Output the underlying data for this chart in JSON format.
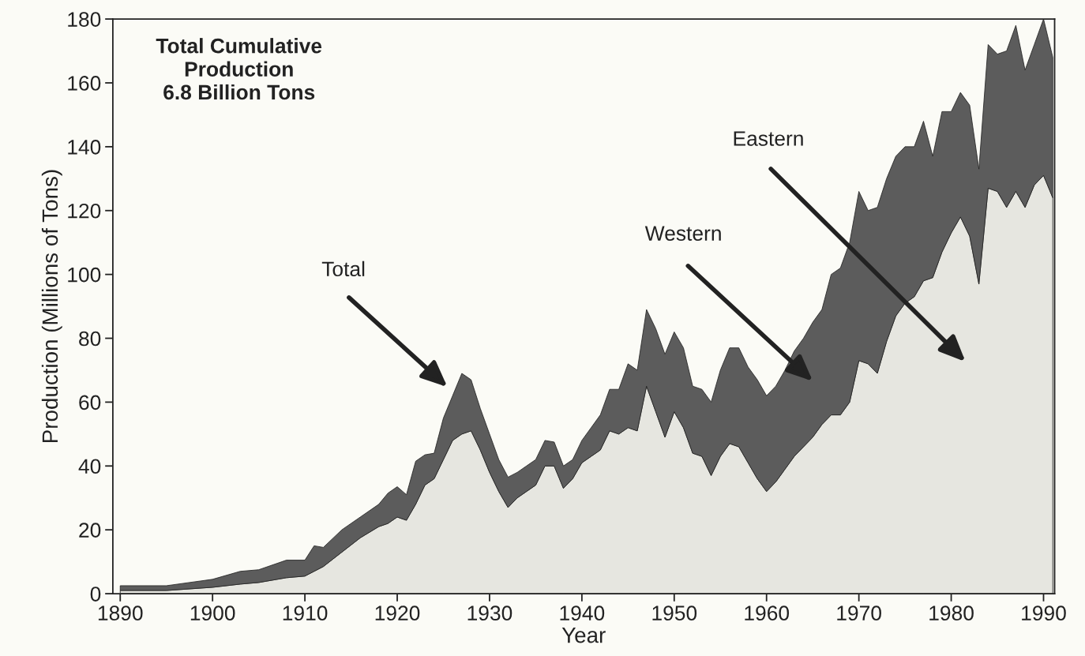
{
  "chart_data": {
    "type": "area",
    "stacked": true,
    "xlabel": "Year",
    "ylabel": "Production (Millions of Tons)",
    "x": [
      1890,
      1895,
      1900,
      1903,
      1905,
      1908,
      1910,
      1911,
      1912,
      1914,
      1916,
      1918,
      1919,
      1920,
      1921,
      1922,
      1923,
      1924,
      1925,
      1926,
      1927,
      1928,
      1929,
      1930,
      1931,
      1932,
      1933,
      1934,
      1935,
      1936,
      1937,
      1938,
      1939,
      1940,
      1941,
      1942,
      1943,
      1944,
      1945,
      1946,
      1947,
      1948,
      1949,
      1950,
      1951,
      1952,
      1953,
      1954,
      1955,
      1956,
      1957,
      1958,
      1959,
      1960,
      1961,
      1962,
      1963,
      1964,
      1965,
      1966,
      1967,
      1968,
      1969,
      1970,
      1971,
      1972,
      1973,
      1974,
      1975,
      1976,
      1977,
      1978,
      1979,
      1980,
      1981,
      1982,
      1983,
      1984,
      1985,
      1986,
      1987,
      1988,
      1989,
      1990,
      1991
    ],
    "series": [
      {
        "color": "#e6e6e0",
        "values": [
          1,
          1,
          2,
          3,
          3.5,
          5,
          5.5,
          7,
          8.5,
          13,
          17.5,
          21,
          22,
          24,
          23,
          28,
          34,
          36,
          42,
          48,
          50,
          51,
          45,
          38,
          32,
          27,
          30,
          32,
          34,
          40,
          40,
          33,
          36,
          41,
          43,
          45,
          51,
          50,
          52,
          51,
          65,
          57,
          49,
          57,
          52,
          44,
          43,
          37,
          43,
          47,
          46,
          41,
          36,
          32,
          35,
          39,
          43,
          46,
          49,
          53,
          56,
          56,
          60,
          73,
          72,
          69,
          79,
          87,
          91,
          93,
          98,
          99,
          107,
          113,
          118,
          112,
          97,
          127,
          126,
          121,
          126,
          121,
          128,
          131,
          124
        ]
      },
      {
        "color": "#5c5c5c",
        "values": [
          1.5,
          1.5,
          2.5,
          4,
          4,
          5.5,
          5,
          8,
          6,
          7,
          6.5,
          7,
          9.5,
          9.5,
          8,
          13.5,
          9.5,
          8,
          13,
          14,
          19,
          16,
          13,
          12,
          10,
          9.5,
          8,
          8,
          8,
          8,
          7.5,
          7,
          6,
          7,
          9,
          11,
          13,
          14,
          20,
          19,
          24,
          26,
          26,
          25,
          25,
          21,
          21,
          23,
          27,
          30,
          31,
          30,
          31,
          30,
          30,
          31,
          33,
          34,
          36,
          36,
          44,
          46,
          50,
          53,
          48,
          52,
          51,
          50,
          49,
          47,
          50,
          38,
          44,
          38,
          39,
          41,
          36,
          45,
          43,
          49,
          52,
          43,
          44,
          49,
          44
        ]
      }
    ],
    "xlim": [
      1889.2,
      1991.2
    ],
    "ylim": [
      0,
      180
    ],
    "xticks": [
      1890,
      1900,
      1910,
      1920,
      1930,
      1940,
      1950,
      1960,
      1970,
      1980,
      1990
    ],
    "yticks": [
      0,
      20,
      40,
      60,
      80,
      100,
      120,
      140,
      160,
      180
    ],
    "grid": false,
    "legend": false,
    "annotations": [
      "Total Cumulative\nProduction\n6.8 Billion Tons",
      "Total",
      "Western",
      "Eastern"
    ]
  }
}
